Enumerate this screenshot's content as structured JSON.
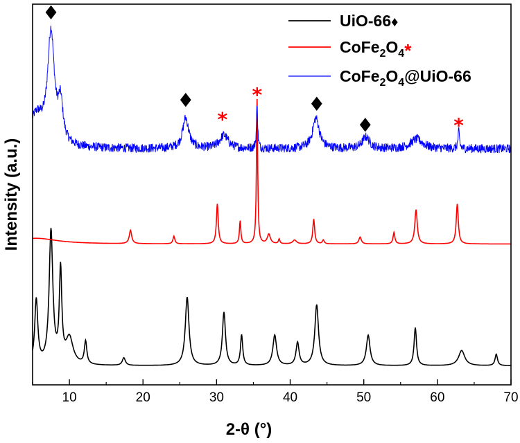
{
  "chart_data": {
    "type": "line",
    "xlabel": "2-θ (°)",
    "ylabel": "Intensity (a.u.)",
    "xlim": [
      5,
      70
    ],
    "ylim": [
      0,
      1
    ],
    "x_ticks": [
      "10",
      "20",
      "30",
      "40",
      "50",
      "60",
      "70"
    ],
    "y_ticks_labeled": false,
    "grid": false,
    "legend_position": "top-right",
    "legend": [
      {
        "text": "UiO-66",
        "suffix": "♦",
        "suffix_color": "#000000",
        "color": "#000000"
      },
      {
        "text": "CoFe",
        "sub": "2",
        "text2": "O",
        "sub2": "4",
        "suffix": "*",
        "suffix_color": "#ff0000",
        "color": "#ff0000"
      },
      {
        "text": "CoFe",
        "sub": "2",
        "text2": "O",
        "sub2": "4",
        "text3": "@UiO-66",
        "suffix": "",
        "color": "#0000ff"
      }
    ],
    "series": [
      {
        "color": "#000000",
        "baseline": 0.05,
        "peaks": [
          [
            5.5,
            0.17,
            0.25
          ],
          [
            7.5,
            0.35,
            0.3
          ],
          [
            8.8,
            0.24,
            0.2
          ],
          [
            10.0,
            0.07,
            0.6
          ],
          [
            12.2,
            0.06,
            0.2
          ],
          [
            17.4,
            0.02,
            0.25
          ],
          [
            26.0,
            0.18,
            0.3
          ],
          [
            31.0,
            0.14,
            0.25
          ],
          [
            33.4,
            0.08,
            0.18
          ],
          [
            37.9,
            0.08,
            0.3
          ],
          [
            41.0,
            0.06,
            0.25
          ],
          [
            43.6,
            0.16,
            0.3
          ],
          [
            50.6,
            0.08,
            0.3
          ],
          [
            57.0,
            0.1,
            0.2
          ],
          [
            63.3,
            0.04,
            0.5
          ],
          [
            68.0,
            0.03,
            0.2
          ]
        ]
      },
      {
        "color": "#ff0000",
        "baseline": 0.37,
        "peaks": [
          [
            5.5,
            0.015,
            3.5
          ],
          [
            18.3,
            0.035,
            0.2
          ],
          [
            24.2,
            0.02,
            0.15
          ],
          [
            30.1,
            0.105,
            0.15
          ],
          [
            33.2,
            0.06,
            0.12
          ],
          [
            35.5,
            0.38,
            0.1
          ],
          [
            37.1,
            0.025,
            0.25
          ],
          [
            38.5,
            0.012,
            0.12
          ],
          [
            40.6,
            0.01,
            0.3
          ],
          [
            43.2,
            0.065,
            0.15
          ],
          [
            44.5,
            0.01,
            0.15
          ],
          [
            49.5,
            0.018,
            0.2
          ],
          [
            54.1,
            0.03,
            0.15
          ],
          [
            57.1,
            0.09,
            0.2
          ],
          [
            62.7,
            0.105,
            0.17
          ]
        ]
      },
      {
        "color": "#0000ff",
        "baseline": 0.62,
        "noise": 0.012,
        "peaks": [
          [
            5.5,
            0.08,
            1.2
          ],
          [
            7.5,
            0.29,
            0.55
          ],
          [
            8.8,
            0.1,
            0.4
          ],
          [
            25.8,
            0.08,
            0.5
          ],
          [
            31.0,
            0.035,
            0.7
          ],
          [
            35.5,
            0.11,
            0.1
          ],
          [
            43.5,
            0.08,
            0.55
          ],
          [
            50.3,
            0.03,
            0.6
          ],
          [
            57.2,
            0.025,
            1.0
          ],
          [
            62.9,
            0.045,
            0.12
          ]
        ]
      }
    ],
    "annotations": [
      {
        "symbol": "♦",
        "color": "#000000",
        "x": 7.5,
        "y": 0.96
      },
      {
        "symbol": "♦",
        "color": "#000000",
        "x": 25.8,
        "y": 0.73
      },
      {
        "symbol": "*",
        "color": "#ff0000",
        "x": 30.8,
        "y": 0.68
      },
      {
        "symbol": "*",
        "color": "#ff0000",
        "x": 35.5,
        "y": 0.745
      },
      {
        "symbol": "♦",
        "color": "#000000",
        "x": 43.6,
        "y": 0.72
      },
      {
        "symbol": "♦",
        "color": "#000000",
        "x": 50.2,
        "y": 0.665
      },
      {
        "symbol": "*",
        "color": "#ff0000",
        "x": 62.9,
        "y": 0.665
      }
    ]
  }
}
